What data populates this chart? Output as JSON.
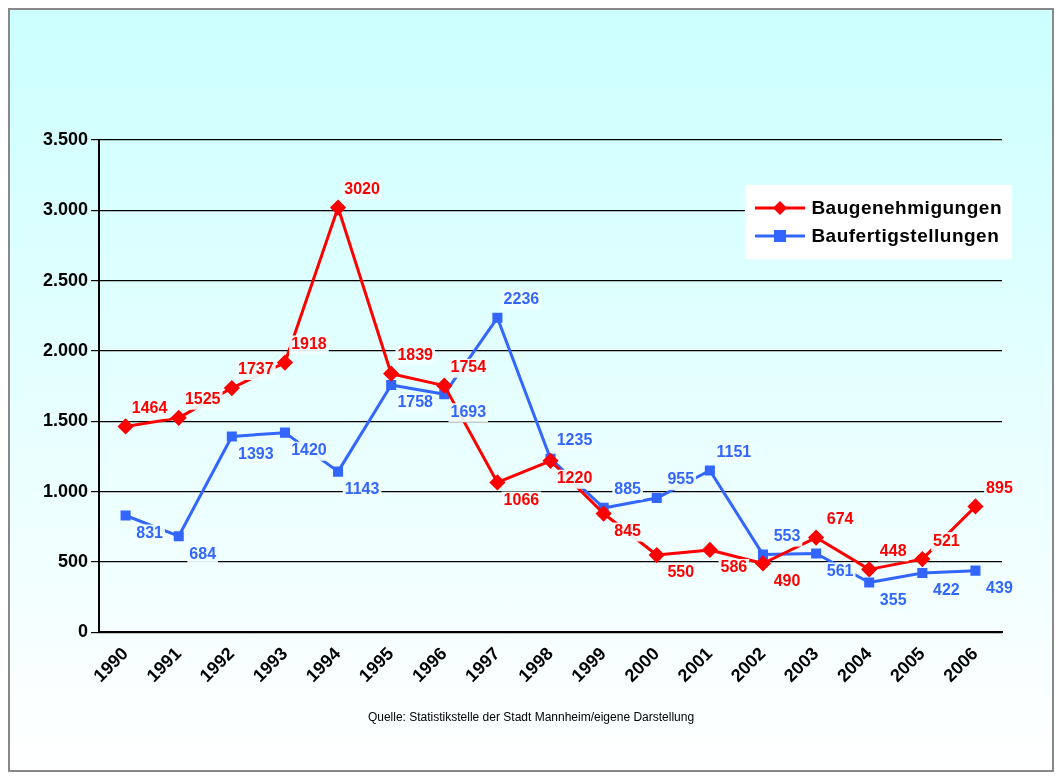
{
  "chart_data": {
    "type": "line",
    "categories": [
      "1990",
      "1991",
      "1992",
      "1993",
      "1994",
      "1995",
      "1996",
      "1997",
      "1998",
      "1999",
      "2000",
      "2001",
      "2002",
      "2003",
      "2004",
      "2005",
      "2006"
    ],
    "series": [
      {
        "name": "Baugenehmigungen",
        "color": "#ff0000",
        "marker": "diamond",
        "values": [
          1464,
          1525,
          1737,
          1918,
          3020,
          1839,
          1754,
          1066,
          1220,
          845,
          550,
          586,
          490,
          674,
          448,
          521,
          895
        ]
      },
      {
        "name": "Baufertigstellungen",
        "color": "#3366ff",
        "marker": "square",
        "values": [
          831,
          684,
          1393,
          1420,
          1143,
          1758,
          1693,
          2236,
          1235,
          885,
          955,
          1151,
          553,
          561,
          355,
          422,
          439
        ]
      }
    ],
    "ylim": [
      0,
      3500
    ],
    "yticks": [
      0,
      500,
      {
        "value": 1000,
        "label": "1.000"
      },
      {
        "value": 1500,
        "label": "1.500"
      },
      {
        "value": 2000,
        "label": "2.000"
      },
      {
        "value": 2500,
        "label": "2.500"
      },
      {
        "value": 3000,
        "label": "3.000"
      },
      {
        "value": 3500,
        "label": "3.500"
      }
    ],
    "grid": "y",
    "legend": "top right",
    "data_labels": true,
    "line_style": "solid",
    "annotations": [
      "Quelle: Statistikstelle der Stadt Mannheim/eigene Darstellung"
    ]
  }
}
